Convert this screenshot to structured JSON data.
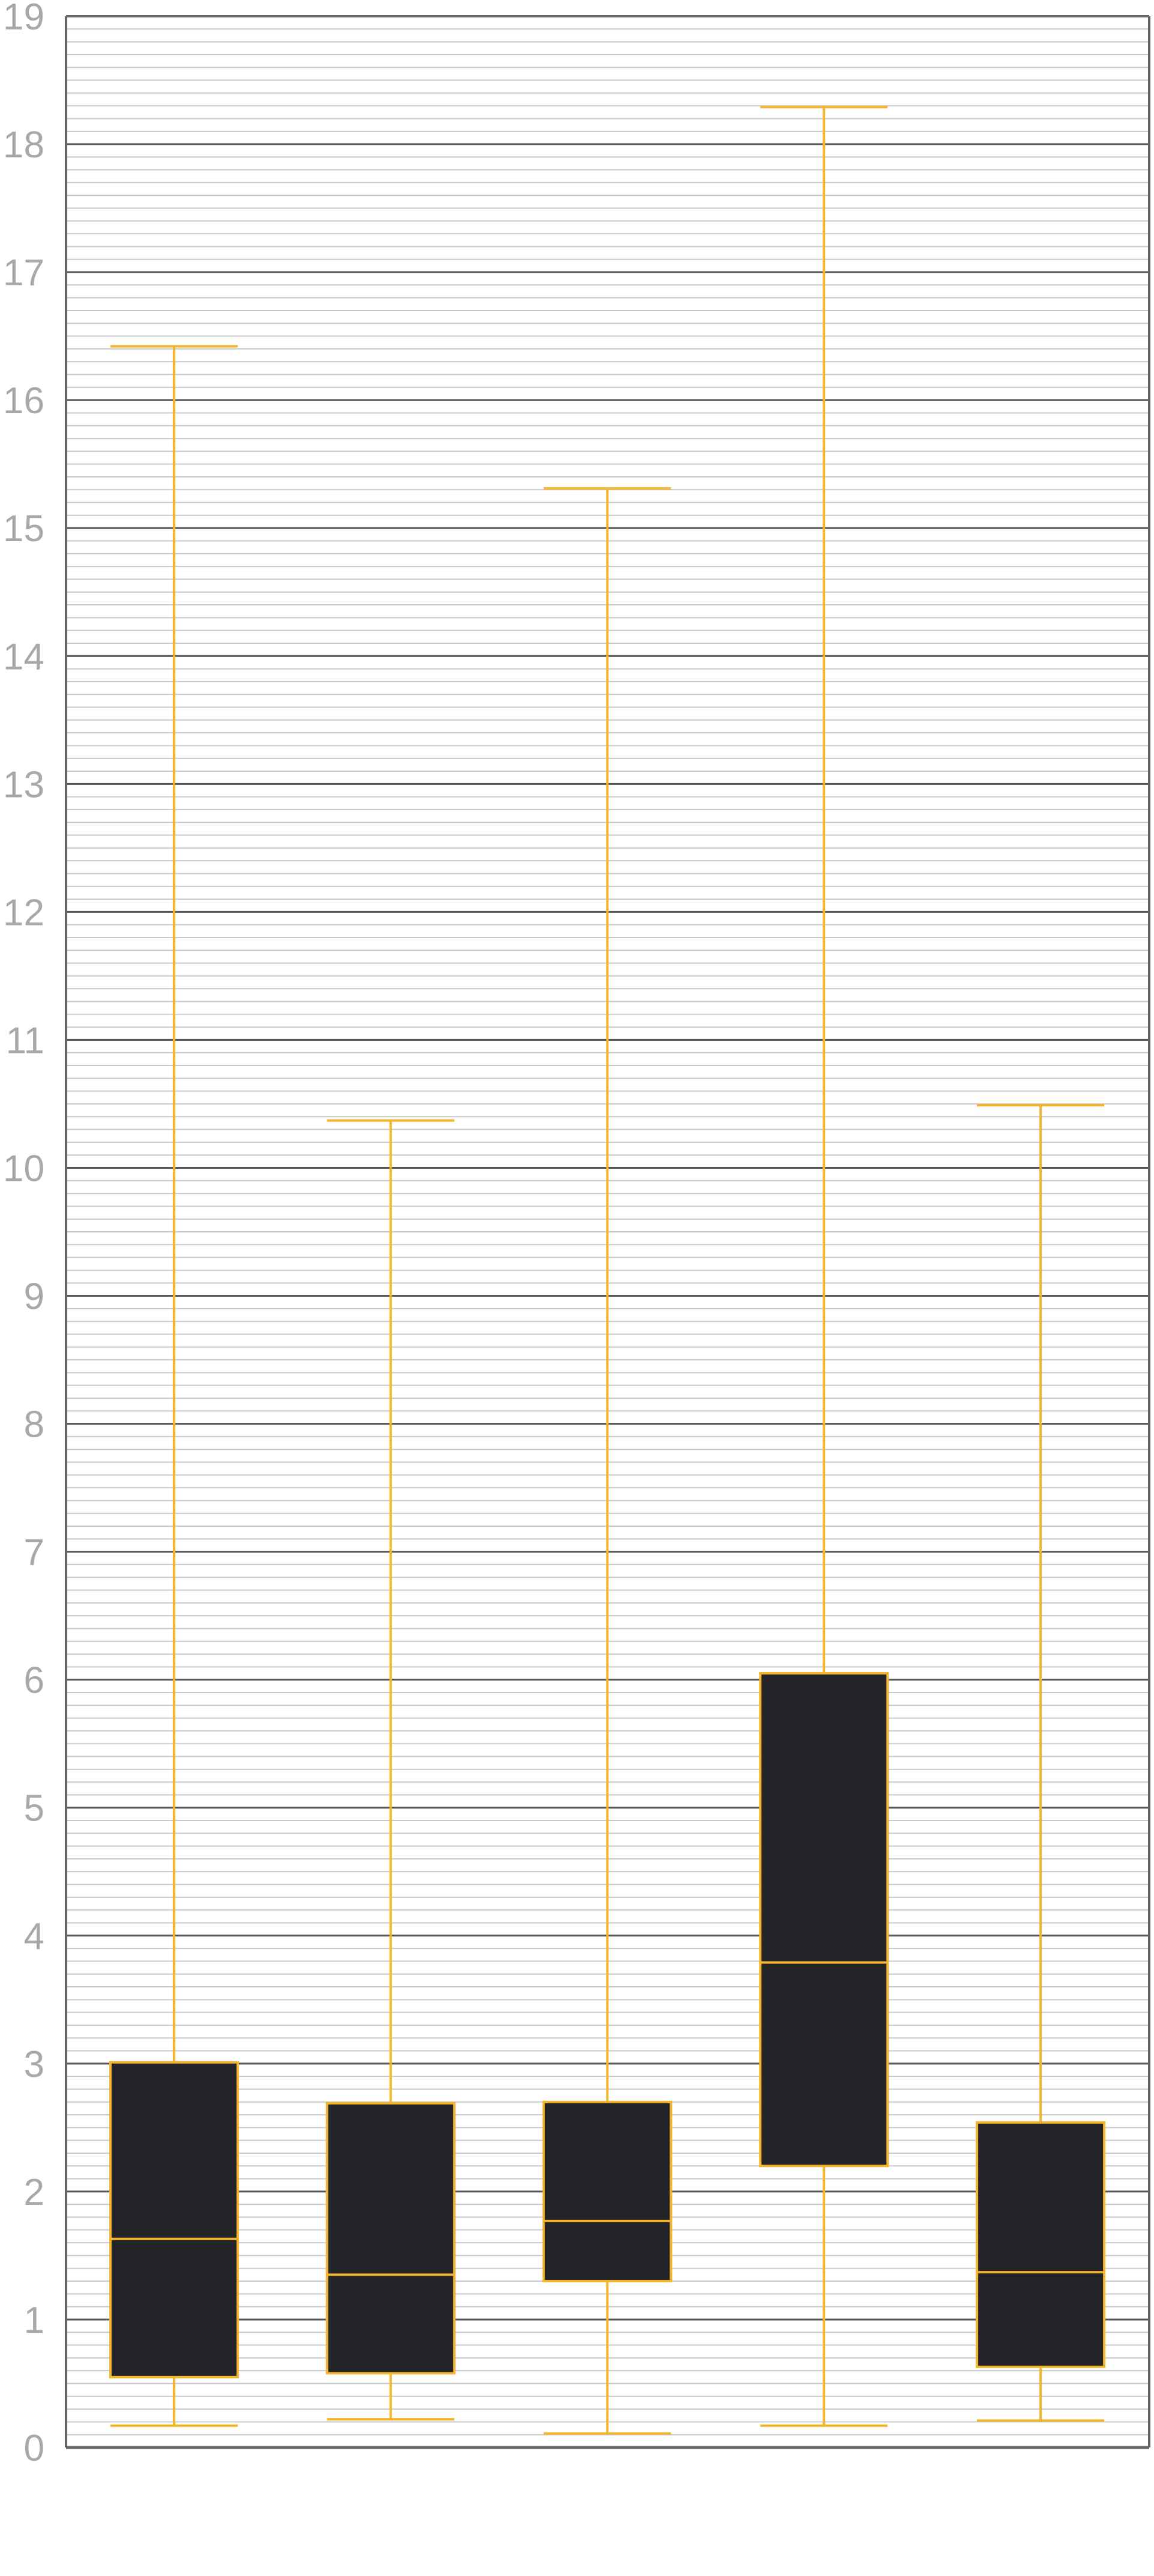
{
  "chart_data": {
    "type": "box",
    "title": "",
    "xlabel": "",
    "ylabel": "",
    "ylim": [
      0,
      19
    ],
    "yticks": [
      "0",
      "1",
      "2",
      "3",
      "4",
      "5",
      "6",
      "7",
      "8",
      "9",
      "10",
      "11",
      "12",
      "13",
      "14",
      "15",
      "16",
      "17",
      "18",
      "19"
    ],
    "minor_ticks_per_unit": 10,
    "grid": true,
    "legend": "none",
    "categories": [
      "",
      "",
      "",
      "",
      ""
    ],
    "boxes": [
      {
        "whisker_low": 0.17,
        "q1": 0.55,
        "median": 1.63,
        "q3": 3.01,
        "whisker_high": 16.42
      },
      {
        "whisker_low": 0.22,
        "q1": 0.58,
        "median": 1.35,
        "q3": 2.69,
        "whisker_high": 10.37
      },
      {
        "whisker_low": 0.11,
        "q1": 1.3,
        "median": 1.77,
        "q3": 2.7,
        "whisker_high": 15.31
      },
      {
        "whisker_low": 0.17,
        "q1": 2.2,
        "median": 3.79,
        "q3": 6.05,
        "whisker_high": 18.29
      },
      {
        "whisker_low": 0.21,
        "q1": 0.63,
        "median": 1.37,
        "q3": 2.54,
        "whisker_high": 10.49
      }
    ],
    "colors": {
      "box_fill": "#232427",
      "box_stroke": "#f3b52b",
      "grid_major": "#555555",
      "grid_minor": "#c9c9c9",
      "axis": "#666666",
      "tick_label": "#a8a8a8"
    }
  }
}
